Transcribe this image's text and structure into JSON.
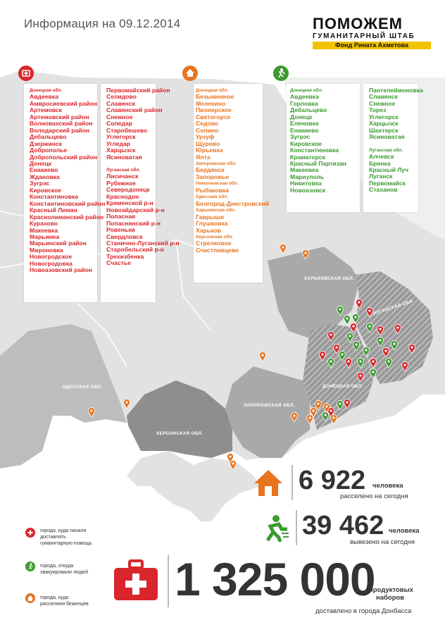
{
  "header": {
    "title": "Информация на 09.12.2014"
  },
  "logo": {
    "brand": "ПОМОЖЕМ",
    "sub": "ГУМАНИТАРНЫЙ ШТАБ",
    "fund": "Фонд Рината Ахметова"
  },
  "regions": {
    "kharkiv": "ХАРЬКОВСКАЯ ОБЛ.",
    "luhansk": "ЛУГАНСКАЯ ОБЛ.",
    "donetsk": "ДОНЕЦКАЯ ОБЛ.",
    "odesa": "ОДЕССКАЯ ОБЛ.",
    "zaporizhzhia": "ЗАПОРОЖСКАЯ ОБЛ.",
    "kherson": "ХЕРСОНСКАЯ ОБЛ."
  },
  "aid": {
    "col1": {
      "head": "Донецкая обл.",
      "items": [
        "Авдеевка",
        "Амвросиевский район",
        "Артемовск",
        "Артемовский район",
        "Волновахский район",
        "Володарский район",
        "Дебальцево",
        "Дзержинск",
        "Доброполье",
        "Добропольский район",
        "Донецк",
        "Енакиево",
        "Ждановка",
        "Зугрэс",
        "Кировское",
        "Константиновка",
        "Константиновский район",
        "Красный Лиман",
        "Краснолиманский район",
        "Курахово",
        "Макеевка",
        "Марьинка",
        "Марьинский район",
        "Мироновка",
        "Новогродское",
        "Новогродовка",
        "Новоазовский район"
      ]
    },
    "col2": {
      "items": [
        "Первомайский район",
        "Селидово",
        "Славянск",
        "Славянский район",
        "Снежное",
        "Соледар",
        "Старобешево",
        "Углегорск",
        "Угледар",
        "Харцызск",
        "Ясиноватая"
      ],
      "head2": "Луганская обл.",
      "items2": [
        "Лисичанск",
        "Рубежное",
        "Северодонецк",
        "Краснодон",
        "Кременской р-н",
        "Новоайдарский р-н",
        "Попасная",
        "Попаснянский р-н",
        "Ровеньки",
        "Свердловск",
        "Станично-Луганский р-н",
        "Старобельский р-н",
        "Трехизбенка",
        "Счастье"
      ]
    }
  },
  "refugees": {
    "head1": "Донецкая обл.",
    "items1": [
      "Безыменное",
      "Мелекино",
      "Пионерское",
      "Святогорск",
      "Седово",
      "Сопино",
      "Урзуф",
      "Щурово",
      "Юрьевка",
      "Ялта"
    ],
    "head2": "Запорожская обл.",
    "items2": [
      "Бердянск",
      "Запорожье"
    ],
    "head3": "Николаевская обл.",
    "items3": [
      "Рыбаковка"
    ],
    "head4": "Одесская обл.",
    "items4": [
      "Белгород-Днестровский"
    ],
    "head5": "Харьковская обл.",
    "items5": [
      "Гаврыши",
      "Глушковка",
      "Харьков"
    ],
    "head6": "Херсонская обл.",
    "items6": [
      "Стрелковое",
      "Счастливцево"
    ]
  },
  "evac": {
    "col1": {
      "head": "Донецкая обл.",
      "items": [
        "Авдеевка",
        "Горловка",
        "Дебальцево",
        "Донецк",
        "Еленовка",
        "Енакиево",
        "Зугрэс",
        "Кировское",
        "Константиновка",
        "Краматорск",
        "Красный Партизан",
        "Макеевка",
        "Мариуполь",
        "Никитовка",
        "Новоазовск"
      ]
    },
    "col2": {
      "items": [
        "Пантелеймоновка",
        "Славянск",
        "Снежное",
        "Торез",
        "Углегорск",
        "Харцызск",
        "Шахтерск",
        "Ясиноватая"
      ],
      "head2": "Луганская обл.",
      "items2": [
        "Алчевск",
        "Брянка",
        "Красный Луч",
        "Луганск",
        "Первомайск",
        "Стаханов"
      ]
    }
  },
  "stats": {
    "resettled": {
      "number": "6 922",
      "unit": "человека",
      "desc": "расселено на сегодня"
    },
    "evacuated": {
      "number": "39 462",
      "unit": "человека",
      "desc": "вывезено на сегодня"
    },
    "kits": {
      "number": "1 325 000",
      "unit1": "продуктовых",
      "unit2": "наборов",
      "desc": "доставлено в города Донбасса"
    }
  },
  "legend": {
    "aid": [
      "города, куда начали",
      "доставлять",
      "гуманитарную помощь"
    ],
    "evac": [
      "города, откуда",
      "эвакуировали людей"
    ],
    "refuge": [
      "города, куда",
      "расселяем беженцев"
    ]
  },
  "colors": {
    "red": "#d9262c",
    "orange": "#e8741e",
    "green": "#3c9a2f",
    "map_light": "#d2d2d2",
    "map_mid": "#a9a9a9",
    "map_dark": "#8e8e8e"
  }
}
